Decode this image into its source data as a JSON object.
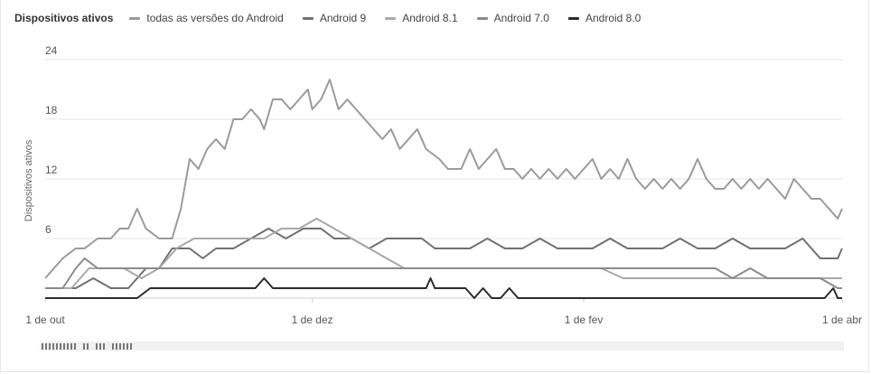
{
  "legend": {
    "title": "Dispositivos ativos",
    "items": [
      {
        "label": "todas as versões do Android",
        "color": "#9a9a9a"
      },
      {
        "label": "Android 9",
        "color": "#707070"
      },
      {
        "label": "Android 8.1",
        "color": "#a8a8a8"
      },
      {
        "label": "Android 7.0",
        "color": "#8a8a8a"
      },
      {
        "label": "Android 8.0",
        "color": "#2b2b2b"
      }
    ]
  },
  "chart_data": {
    "type": "line",
    "ylabel": "Dispositivos ativos",
    "xlabel": "",
    "ylim": [
      0,
      24
    ],
    "yticks": [
      "6",
      "12",
      "18",
      "24"
    ],
    "xlim": [
      "2018-10-01",
      "2019-04-01"
    ],
    "xticks": [
      {
        "label": "1 de out",
        "date": "2018-10-01"
      },
      {
        "label": "1 de dez",
        "date": "2018-12-01"
      },
      {
        "label": "1 de fev",
        "date": "2019-02-01"
      },
      {
        "label": "1 de abr",
        "date": "2019-04-01"
      }
    ],
    "grid": true,
    "legend_position": "top",
    "series": [
      {
        "name": "todas as versões do Android",
        "color": "#9a9a9a",
        "points": [
          [
            "2018-10-01",
            2
          ],
          [
            "2018-10-05",
            4
          ],
          [
            "2018-10-08",
            5
          ],
          [
            "2018-10-10",
            5
          ],
          [
            "2018-10-13",
            6
          ],
          [
            "2018-10-16",
            6
          ],
          [
            "2018-10-18",
            7
          ],
          [
            "2018-10-20",
            7
          ],
          [
            "2018-10-22",
            9
          ],
          [
            "2018-10-24",
            7
          ],
          [
            "2018-10-27",
            6
          ],
          [
            "2018-10-30",
            6
          ],
          [
            "2018-11-01",
            9
          ],
          [
            "2018-11-03",
            14
          ],
          [
            "2018-11-05",
            13
          ],
          [
            "2018-11-07",
            15
          ],
          [
            "2018-11-09",
            16
          ],
          [
            "2018-11-11",
            15
          ],
          [
            "2018-11-13",
            18
          ],
          [
            "2018-11-15",
            18
          ],
          [
            "2018-11-17",
            19
          ],
          [
            "2018-11-19",
            18
          ],
          [
            "2018-11-20",
            17
          ],
          [
            "2018-11-22",
            20
          ],
          [
            "2018-11-24",
            20
          ],
          [
            "2018-11-26",
            19
          ],
          [
            "2018-11-28",
            20
          ],
          [
            "2018-11-30",
            21
          ],
          [
            "2018-12-01",
            19
          ],
          [
            "2018-12-03",
            20
          ],
          [
            "2018-12-05",
            22
          ],
          [
            "2018-12-07",
            19
          ],
          [
            "2018-12-09",
            20
          ],
          [
            "2018-12-11",
            19
          ],
          [
            "2018-12-13",
            18
          ],
          [
            "2018-12-15",
            17
          ],
          [
            "2018-12-17",
            16
          ],
          [
            "2018-12-19",
            17
          ],
          [
            "2018-12-21",
            15
          ],
          [
            "2018-12-23",
            16
          ],
          [
            "2018-12-25",
            17
          ],
          [
            "2018-12-27",
            15
          ],
          [
            "2018-12-30",
            14
          ],
          [
            "2019-01-01",
            13
          ],
          [
            "2019-01-04",
            13
          ],
          [
            "2019-01-06",
            15
          ],
          [
            "2019-01-08",
            13
          ],
          [
            "2019-01-10",
            14
          ],
          [
            "2019-01-12",
            15
          ],
          [
            "2019-01-14",
            13
          ],
          [
            "2019-01-16",
            13
          ],
          [
            "2019-01-18",
            12
          ],
          [
            "2019-01-20",
            13
          ],
          [
            "2019-01-22",
            12
          ],
          [
            "2019-01-24",
            13
          ],
          [
            "2019-01-26",
            12
          ],
          [
            "2019-01-28",
            13
          ],
          [
            "2019-01-30",
            12
          ],
          [
            "2019-02-01",
            13
          ],
          [
            "2019-02-03",
            14
          ],
          [
            "2019-02-05",
            12
          ],
          [
            "2019-02-07",
            13
          ],
          [
            "2019-02-09",
            12
          ],
          [
            "2019-02-11",
            14
          ],
          [
            "2019-02-13",
            12
          ],
          [
            "2019-02-15",
            11
          ],
          [
            "2019-02-17",
            12
          ],
          [
            "2019-02-19",
            11
          ],
          [
            "2019-02-21",
            12
          ],
          [
            "2019-02-23",
            11
          ],
          [
            "2019-02-25",
            12
          ],
          [
            "2019-02-27",
            14
          ],
          [
            "2019-03-01",
            12
          ],
          [
            "2019-03-03",
            11
          ],
          [
            "2019-03-05",
            11
          ],
          [
            "2019-03-07",
            12
          ],
          [
            "2019-03-09",
            11
          ],
          [
            "2019-03-11",
            12
          ],
          [
            "2019-03-13",
            11
          ],
          [
            "2019-03-15",
            12
          ],
          [
            "2019-03-17",
            11
          ],
          [
            "2019-03-19",
            10
          ],
          [
            "2019-03-21",
            12
          ],
          [
            "2019-03-23",
            11
          ],
          [
            "2019-03-25",
            10
          ],
          [
            "2019-03-27",
            10
          ],
          [
            "2019-03-29",
            9
          ],
          [
            "2019-03-31",
            8
          ],
          [
            "2019-04-01",
            9
          ]
        ]
      },
      {
        "name": "Android 9",
        "color": "#707070",
        "points": [
          [
            "2018-10-01",
            1
          ],
          [
            "2018-10-08",
            1
          ],
          [
            "2018-10-12",
            2
          ],
          [
            "2018-10-16",
            1
          ],
          [
            "2018-10-20",
            1
          ],
          [
            "2018-10-24",
            3
          ],
          [
            "2018-10-27",
            3
          ],
          [
            "2018-10-30",
            5
          ],
          [
            "2018-11-03",
            5
          ],
          [
            "2018-11-06",
            4
          ],
          [
            "2018-11-09",
            5
          ],
          [
            "2018-11-13",
            5
          ],
          [
            "2018-11-17",
            6
          ],
          [
            "2018-11-21",
            7
          ],
          [
            "2018-11-25",
            6
          ],
          [
            "2018-11-29",
            7
          ],
          [
            "2018-12-03",
            7
          ],
          [
            "2018-12-06",
            6
          ],
          [
            "2018-12-10",
            6
          ],
          [
            "2018-12-14",
            5
          ],
          [
            "2018-12-18",
            6
          ],
          [
            "2018-12-22",
            6
          ],
          [
            "2018-12-26",
            6
          ],
          [
            "2018-12-29",
            5
          ],
          [
            "2019-01-02",
            5
          ],
          [
            "2019-01-06",
            5
          ],
          [
            "2019-01-10",
            6
          ],
          [
            "2019-01-14",
            5
          ],
          [
            "2019-01-18",
            5
          ],
          [
            "2019-01-22",
            6
          ],
          [
            "2019-01-26",
            5
          ],
          [
            "2019-01-30",
            5
          ],
          [
            "2019-02-03",
            5
          ],
          [
            "2019-02-07",
            6
          ],
          [
            "2019-02-11",
            5
          ],
          [
            "2019-02-15",
            5
          ],
          [
            "2019-02-19",
            5
          ],
          [
            "2019-02-23",
            6
          ],
          [
            "2019-02-27",
            5
          ],
          [
            "2019-03-03",
            5
          ],
          [
            "2019-03-07",
            6
          ],
          [
            "2019-03-11",
            5
          ],
          [
            "2019-03-15",
            5
          ],
          [
            "2019-03-19",
            5
          ],
          [
            "2019-03-23",
            6
          ],
          [
            "2019-03-27",
            4
          ],
          [
            "2019-03-31",
            4
          ],
          [
            "2019-04-01",
            5
          ]
        ]
      },
      {
        "name": "Android 8.1",
        "color": "#a8a8a8",
        "points": [
          [
            "2018-10-01",
            1
          ],
          [
            "2018-10-07",
            1
          ],
          [
            "2018-10-11",
            3
          ],
          [
            "2018-10-15",
            3
          ],
          [
            "2018-10-19",
            3
          ],
          [
            "2018-10-23",
            2
          ],
          [
            "2018-10-27",
            3
          ],
          [
            "2018-10-31",
            5
          ],
          [
            "2018-11-04",
            6
          ],
          [
            "2018-11-08",
            6
          ],
          [
            "2018-11-12",
            6
          ],
          [
            "2018-11-16",
            6
          ],
          [
            "2018-11-20",
            6
          ],
          [
            "2018-11-24",
            7
          ],
          [
            "2018-11-28",
            7
          ],
          [
            "2018-12-02",
            8
          ],
          [
            "2018-12-06",
            7
          ],
          [
            "2018-12-10",
            6
          ],
          [
            "2018-12-14",
            5
          ],
          [
            "2018-12-18",
            4
          ],
          [
            "2018-12-22",
            3
          ],
          [
            "2018-12-26",
            3
          ],
          [
            "2018-12-30",
            3
          ],
          [
            "2019-01-05",
            3
          ],
          [
            "2019-01-10",
            3
          ],
          [
            "2019-01-15",
            3
          ],
          [
            "2019-01-20",
            3
          ],
          [
            "2019-01-25",
            3
          ],
          [
            "2019-01-30",
            3
          ],
          [
            "2019-02-05",
            3
          ],
          [
            "2019-02-10",
            2
          ],
          [
            "2019-02-15",
            2
          ],
          [
            "2019-02-20",
            2
          ],
          [
            "2019-02-25",
            2
          ],
          [
            "2019-03-02",
            2
          ],
          [
            "2019-03-07",
            2
          ],
          [
            "2019-03-12",
            2
          ],
          [
            "2019-03-17",
            2
          ],
          [
            "2019-03-22",
            2
          ],
          [
            "2019-03-27",
            2
          ],
          [
            "2019-04-01",
            2
          ]
        ]
      },
      {
        "name": "Android 7.0",
        "color": "#8a8a8a",
        "points": [
          [
            "2018-10-01",
            1
          ],
          [
            "2018-10-05",
            1
          ],
          [
            "2018-10-08",
            3
          ],
          [
            "2018-10-10",
            4
          ],
          [
            "2018-10-13",
            3
          ],
          [
            "2018-10-17",
            3
          ],
          [
            "2018-10-21",
            3
          ],
          [
            "2018-10-25",
            3
          ],
          [
            "2018-10-29",
            3
          ],
          [
            "2018-11-02",
            3
          ],
          [
            "2018-11-06",
            3
          ],
          [
            "2018-11-10",
            3
          ],
          [
            "2018-11-14",
            3
          ],
          [
            "2018-11-18",
            3
          ],
          [
            "2018-11-22",
            3
          ],
          [
            "2018-11-26",
            3
          ],
          [
            "2018-11-30",
            3
          ],
          [
            "2018-12-04",
            3
          ],
          [
            "2018-12-08",
            3
          ],
          [
            "2018-12-12",
            3
          ],
          [
            "2018-12-16",
            3
          ],
          [
            "2018-12-20",
            3
          ],
          [
            "2018-12-24",
            3
          ],
          [
            "2018-12-28",
            3
          ],
          [
            "2019-01-02",
            3
          ],
          [
            "2019-01-06",
            3
          ],
          [
            "2019-01-10",
            3
          ],
          [
            "2019-01-14",
            3
          ],
          [
            "2019-01-18",
            3
          ],
          [
            "2019-01-22",
            3
          ],
          [
            "2019-01-26",
            3
          ],
          [
            "2019-01-30",
            3
          ],
          [
            "2019-02-03",
            3
          ],
          [
            "2019-02-07",
            3
          ],
          [
            "2019-02-11",
            3
          ],
          [
            "2019-02-15",
            3
          ],
          [
            "2019-02-19",
            3
          ],
          [
            "2019-02-23",
            3
          ],
          [
            "2019-02-27",
            3
          ],
          [
            "2019-03-03",
            3
          ],
          [
            "2019-03-07",
            2
          ],
          [
            "2019-03-11",
            3
          ],
          [
            "2019-03-15",
            2
          ],
          [
            "2019-03-19",
            2
          ],
          [
            "2019-03-23",
            2
          ],
          [
            "2019-03-27",
            2
          ],
          [
            "2019-03-31",
            1
          ],
          [
            "2019-04-01",
            1
          ]
        ]
      },
      {
        "name": "Android 8.0",
        "color": "#2b2b2b",
        "points": [
          [
            "2018-10-01",
            0
          ],
          [
            "2018-10-06",
            0
          ],
          [
            "2018-10-10",
            0
          ],
          [
            "2018-10-14",
            0
          ],
          [
            "2018-10-18",
            0
          ],
          [
            "2018-10-22",
            0
          ],
          [
            "2018-10-25",
            1
          ],
          [
            "2018-10-28",
            1
          ],
          [
            "2018-10-31",
            1
          ],
          [
            "2018-11-03",
            1
          ],
          [
            "2018-11-07",
            1
          ],
          [
            "2018-11-11",
            1
          ],
          [
            "2018-11-15",
            1
          ],
          [
            "2018-11-18",
            1
          ],
          [
            "2018-11-20",
            2
          ],
          [
            "2018-11-22",
            1
          ],
          [
            "2018-11-26",
            1
          ],
          [
            "2018-11-30",
            1
          ],
          [
            "2018-12-04",
            1
          ],
          [
            "2018-12-08",
            1
          ],
          [
            "2018-12-12",
            1
          ],
          [
            "2018-12-16",
            1
          ],
          [
            "2018-12-20",
            1
          ],
          [
            "2018-12-24",
            1
          ],
          [
            "2018-12-27",
            1
          ],
          [
            "2018-12-28",
            2
          ],
          [
            "2018-12-29",
            1
          ],
          [
            "2019-01-02",
            1
          ],
          [
            "2019-01-05",
            1
          ],
          [
            "2019-01-07",
            0
          ],
          [
            "2019-01-09",
            1
          ],
          [
            "2019-01-11",
            0
          ],
          [
            "2019-01-13",
            0
          ],
          [
            "2019-01-15",
            1
          ],
          [
            "2019-01-17",
            0
          ],
          [
            "2019-01-21",
            0
          ],
          [
            "2019-01-25",
            0
          ],
          [
            "2019-01-29",
            0
          ],
          [
            "2019-02-02",
            0
          ],
          [
            "2019-02-07",
            0
          ],
          [
            "2019-02-12",
            0
          ],
          [
            "2019-02-17",
            0
          ],
          [
            "2019-02-22",
            0
          ],
          [
            "2019-02-27",
            0
          ],
          [
            "2019-03-04",
            0
          ],
          [
            "2019-03-09",
            0
          ],
          [
            "2019-03-14",
            0
          ],
          [
            "2019-03-19",
            0
          ],
          [
            "2019-03-24",
            0
          ],
          [
            "2019-03-28",
            0
          ],
          [
            "2019-03-30",
            1
          ],
          [
            "2019-03-31",
            0
          ],
          [
            "2019-04-01",
            0
          ]
        ]
      }
    ]
  }
}
